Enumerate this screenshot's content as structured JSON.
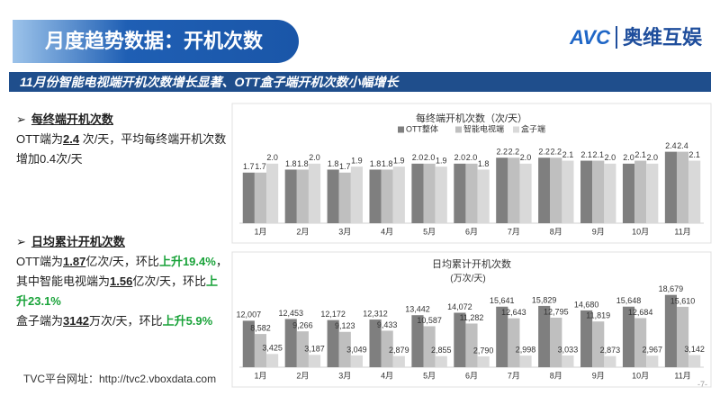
{
  "header": {
    "title": "月度趋势数据：开机次数",
    "logo": "AVC",
    "logo_text": "奥维互娱"
  },
  "banner": "11月份智能电视端开机次数增长显著、OTT盒子端开机次数小幅增长",
  "sections": [
    {
      "heading": "每终端开机次数",
      "paragraphs": [
        [
          "OTT端为",
          "2.4",
          " 次/天，平均每终端开机次数增加0.4次/天"
        ]
      ]
    },
    {
      "heading": "日均累计开机次数",
      "paragraphs": [
        [
          "OTT端为",
          "1.87",
          "亿次/天，环比",
          "上升",
          "19.4%",
          "，其中智能电视端为",
          "1.56",
          "亿次/天，环比",
          "上升23.1%"
        ],
        [
          "盒子端为",
          "3142",
          "万次/天，环比",
          "上升",
          "5.9%"
        ]
      ]
    }
  ],
  "footer": {
    "url": "TVC平台网址：http://tvc2.vboxdata.com",
    "page": "-7-"
  },
  "chart_data": [
    {
      "type": "bar",
      "title": "每终端开机次数（次/天）",
      "categories": [
        "1月",
        "2月",
        "3月",
        "4月",
        "5月",
        "6月",
        "7月",
        "8月",
        "9月",
        "10月",
        "11月"
      ],
      "ylim": [
        0,
        2.6
      ],
      "series": [
        {
          "name": "OTT整体",
          "color": "#7f7f7f",
          "values": [
            1.7,
            1.8,
            1.8,
            1.8,
            2.0,
            2.0,
            2.2,
            2.2,
            2.1,
            2.0,
            2.4
          ],
          "value_labels": [
            "1.7",
            "1.8",
            "1.8",
            "1.8",
            "2.0",
            "2.0",
            "2.2",
            "2.2",
            "2.1",
            "2.0",
            "2.4"
          ]
        },
        {
          "name": "智能电视端",
          "color": "#bfbfbf",
          "values": [
            1.7,
            1.8,
            1.7,
            1.8,
            2.0,
            2.0,
            2.2,
            2.2,
            2.1,
            2.1,
            2.4
          ],
          "value_labels": [
            "1.7",
            "1.8",
            "1.7",
            "1.8",
            "2.0",
            "2.0",
            "2.2",
            "2.2",
            "2.1",
            "2.1",
            "2.4"
          ]
        },
        {
          "name": "盒子端",
          "color": "#d9d9d9",
          "values": [
            2.0,
            2.0,
            1.9,
            1.9,
            1.9,
            1.8,
            2.0,
            2.1,
            2.0,
            2.0,
            2.1
          ],
          "value_labels": [
            "2.0",
            "2.0",
            "1.9",
            "1.9",
            "1.9",
            "1.8",
            "2.0",
            "2.1",
            "2.0",
            "2.0",
            "2.1"
          ]
        }
      ]
    },
    {
      "type": "bar",
      "title": "日均累计开机次数",
      "subtitle": "(万次/天)",
      "categories": [
        "1月",
        "2月",
        "3月",
        "4月",
        "5月",
        "6月",
        "7月",
        "8月",
        "9月",
        "10月",
        "11月"
      ],
      "ylim": [
        0,
        20000
      ],
      "series": [
        {
          "color": "#7f7f7f",
          "values": [
            12007,
            12453,
            12172,
            12312,
            13442,
            14072,
            15641,
            15829,
            14680,
            15648,
            18679
          ],
          "value_labels": [
            "12,007",
            "12,453",
            "12,172",
            "12,312",
            "13,442",
            "14,072",
            "15,641",
            "15,829",
            "14,680",
            "15,648",
            "18,679"
          ]
        },
        {
          "color": "#bfbfbf",
          "values": [
            8582,
            9266,
            9123,
            9433,
            10587,
            11282,
            12643,
            12795,
            11819,
            12684,
            15610
          ],
          "value_labels": [
            "8,582",
            "9,266",
            "9,123",
            "9,433",
            "10,587",
            "11,282",
            "12,643",
            "12,795",
            "11,819",
            "12,684",
            "15,610"
          ]
        },
        {
          "color": "#d9d9d9",
          "values": [
            3425,
            3187,
            3049,
            2879,
            2855,
            2790,
            2998,
            3033,
            2873,
            2967,
            3142
          ],
          "value_labels": [
            "3,425",
            "3,187",
            "3,049",
            "2,879",
            "2,855",
            "2,790",
            "2,998",
            "3,033",
            "2,873",
            "2,967",
            "3,142"
          ]
        }
      ]
    }
  ]
}
